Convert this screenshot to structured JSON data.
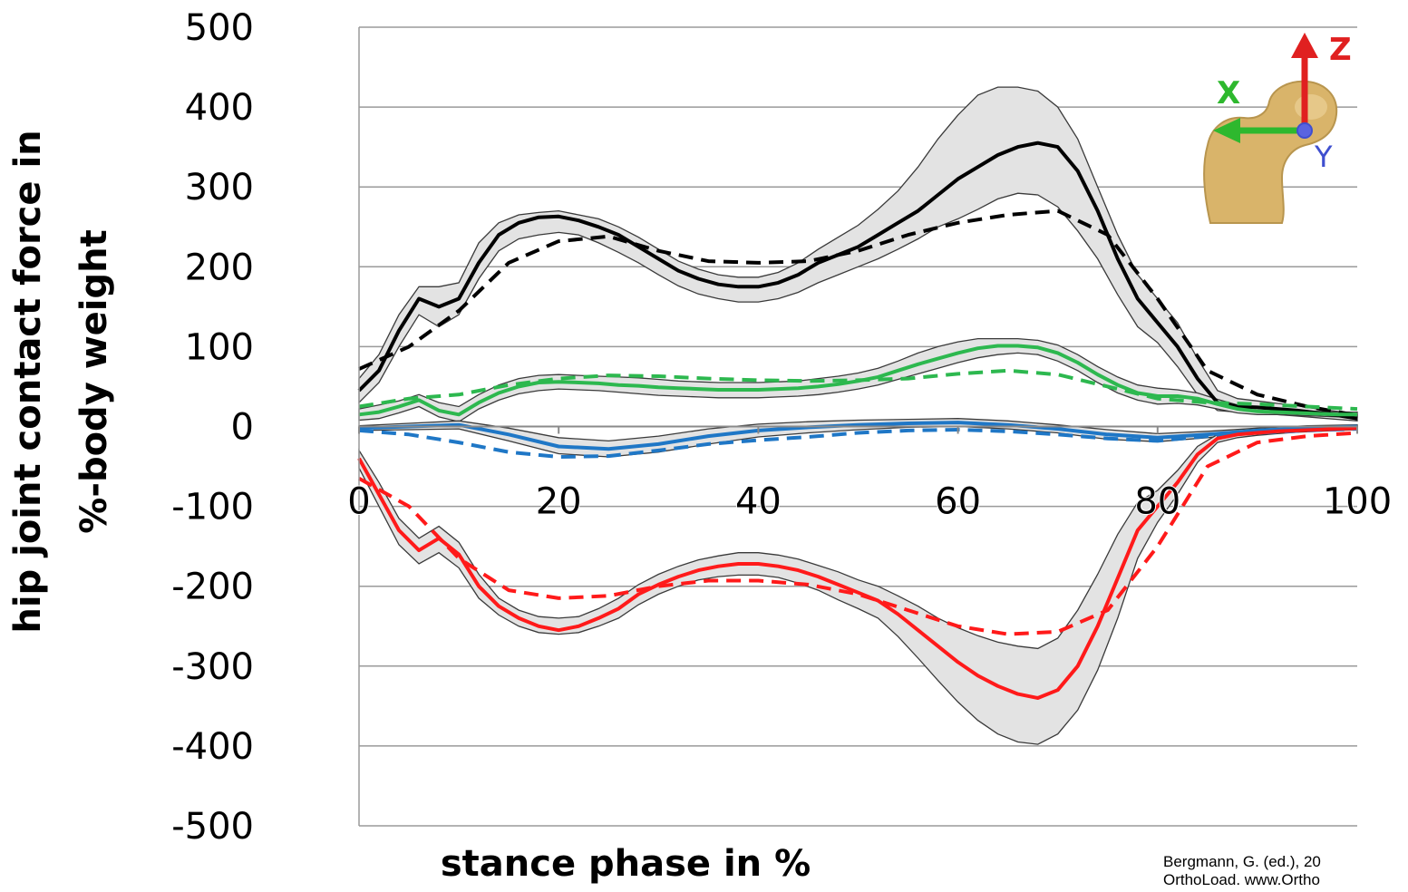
{
  "chart_data": {
    "type": "line",
    "xlabel": "stance phase in %",
    "ylabel_lines": [
      "hip joint contact force in",
      "%-body weight"
    ],
    "xlim": [
      0,
      100
    ],
    "ylim": [
      -500,
      500
    ],
    "x_ticks": [
      0,
      20,
      40,
      60,
      80,
      100
    ],
    "y_ticks": [
      500,
      400,
      300,
      200,
      100,
      0,
      -100,
      -200,
      -300,
      -400,
      -500
    ],
    "grid": "horizontal",
    "axis_triad": {
      "labels": [
        "Z",
        "X",
        "Y"
      ],
      "colors": [
        "#e02020",
        "#2eb82e",
        "#3f4fcf"
      ]
    },
    "series": [
      {
        "color": "#000000",
        "style": "solid",
        "band_color": "#e3e3e3",
        "x": [
          0,
          2,
          4,
          6,
          8,
          10,
          12,
          14,
          16,
          18,
          20,
          22,
          24,
          26,
          28,
          30,
          32,
          34,
          36,
          38,
          40,
          42,
          44,
          46,
          48,
          50,
          52,
          54,
          56,
          58,
          60,
          62,
          64,
          66,
          68,
          70,
          72,
          74,
          76,
          78,
          80,
          82,
          84,
          86,
          88,
          90,
          92,
          94,
          96,
          98,
          100
        ],
        "values": [
          45,
          70,
          120,
          160,
          150,
          160,
          205,
          240,
          255,
          262,
          263,
          258,
          250,
          240,
          225,
          210,
          195,
          185,
          178,
          175,
          175,
          180,
          190,
          205,
          215,
          225,
          240,
          255,
          270,
          290,
          310,
          325,
          340,
          350,
          355,
          350,
          320,
          270,
          210,
          160,
          130,
          100,
          60,
          30,
          25,
          24,
          22,
          20,
          17,
          14,
          10
        ],
        "band_upper": [
          60,
          90,
          140,
          175,
          175,
          180,
          230,
          255,
          265,
          268,
          270,
          265,
          260,
          250,
          237,
          222,
          207,
          197,
          190,
          187,
          187,
          193,
          205,
          222,
          237,
          252,
          272,
          295,
          325,
          360,
          390,
          415,
          425,
          425,
          420,
          400,
          360,
          300,
          240,
          190,
          160,
          130,
          85,
          45,
          35,
          32,
          29,
          26,
          22,
          19,
          15
        ],
        "band_lower": [
          30,
          55,
          100,
          140,
          125,
          140,
          185,
          220,
          235,
          240,
          243,
          240,
          230,
          218,
          205,
          190,
          176,
          166,
          160,
          156,
          156,
          160,
          168,
          180,
          190,
          200,
          210,
          222,
          235,
          250,
          260,
          272,
          285,
          292,
          290,
          275,
          245,
          210,
          165,
          125,
          105,
          75,
          40,
          20,
          18,
          16,
          15,
          13,
          11,
          9,
          7
        ]
      },
      {
        "color": "#000000",
        "style": "dashed",
        "x": [
          0,
          5,
          10,
          15,
          20,
          25,
          30,
          35,
          40,
          45,
          50,
          55,
          60,
          65,
          70,
          75,
          80,
          85,
          90,
          95,
          100
        ],
        "values": [
          72,
          100,
          145,
          205,
          232,
          238,
          220,
          207,
          205,
          207,
          220,
          240,
          255,
          265,
          270,
          240,
          160,
          70,
          40,
          25,
          14
        ]
      },
      {
        "color": "#2db84f",
        "style": "solid",
        "band_color": "#e3e3e3",
        "x": [
          0,
          2,
          4,
          6,
          8,
          10,
          12,
          14,
          16,
          18,
          20,
          22,
          24,
          26,
          28,
          30,
          32,
          34,
          36,
          38,
          40,
          42,
          44,
          46,
          48,
          50,
          52,
          54,
          56,
          58,
          60,
          62,
          64,
          66,
          68,
          70,
          72,
          74,
          76,
          78,
          80,
          82,
          84,
          86,
          88,
          90,
          92,
          94,
          96,
          98,
          100
        ],
        "values": [
          15,
          18,
          25,
          33,
          20,
          15,
          30,
          42,
          50,
          55,
          56,
          55,
          54,
          52,
          51,
          49,
          48,
          47,
          46,
          46,
          46,
          47,
          48,
          50,
          53,
          57,
          62,
          70,
          78,
          85,
          92,
          98,
          101,
          101,
          99,
          92,
          80,
          65,
          52,
          42,
          38,
          38,
          35,
          28,
          22,
          19,
          18,
          17,
          16,
          15,
          15
        ],
        "band_upper": [
          22,
          27,
          32,
          40,
          30,
          25,
          40,
          52,
          60,
          64,
          65,
          64,
          63,
          62,
          61,
          59,
          57,
          56,
          55,
          55,
          55,
          56,
          57,
          60,
          63,
          67,
          73,
          82,
          92,
          100,
          106,
          110,
          110,
          110,
          108,
          102,
          90,
          75,
          62,
          52,
          48,
          46,
          42,
          34,
          27,
          23,
          21,
          20,
          19,
          18,
          18
        ],
        "band_lower": [
          8,
          10,
          17,
          25,
          12,
          6,
          22,
          33,
          41,
          45,
          47,
          46,
          45,
          43,
          41,
          39,
          38,
          37,
          36,
          36,
          36,
          37,
          38,
          40,
          43,
          47,
          52,
          59,
          66,
          73,
          80,
          86,
          90,
          92,
          90,
          82,
          70,
          55,
          42,
          33,
          28,
          29,
          27,
          22,
          17,
          15,
          15,
          14,
          13,
          12,
          12
        ]
      },
      {
        "color": "#2db84f",
        "style": "dashed",
        "x": [
          0,
          5,
          10,
          15,
          20,
          25,
          30,
          35,
          40,
          45,
          50,
          55,
          60,
          65,
          70,
          75,
          80,
          85,
          90,
          95,
          100
        ],
        "values": [
          25,
          35,
          40,
          52,
          60,
          64,
          63,
          60,
          58,
          57,
          58,
          60,
          66,
          70,
          65,
          50,
          35,
          30,
          28,
          25,
          22
        ]
      },
      {
        "color": "#1f77c6",
        "style": "solid",
        "band_color": "#e3e3e3",
        "x": [
          0,
          5,
          10,
          15,
          20,
          25,
          30,
          35,
          40,
          45,
          50,
          55,
          60,
          65,
          70,
          75,
          80,
          85,
          90,
          95,
          100
        ],
        "values": [
          -2,
          0,
          2,
          -10,
          -25,
          -28,
          -22,
          -12,
          -5,
          -1,
          2,
          4,
          5,
          2,
          -3,
          -10,
          -14,
          -10,
          -5,
          -2,
          0
        ],
        "band_upper": [
          1,
          4,
          7,
          -2,
          -14,
          -18,
          -12,
          -3,
          3,
          6,
          8,
          9,
          10,
          7,
          2,
          -4,
          -9,
          -6,
          -2,
          1,
          2
        ],
        "band_lower": [
          -5,
          -4,
          -3,
          -18,
          -34,
          -38,
          -32,
          -22,
          -13,
          -8,
          -4,
          -1,
          0,
          -3,
          -8,
          -16,
          -19,
          -14,
          -8,
          -5,
          -2
        ]
      },
      {
        "color": "#1f77c6",
        "style": "dashed",
        "x": [
          0,
          5,
          10,
          15,
          20,
          25,
          30,
          35,
          40,
          45,
          50,
          55,
          60,
          65,
          70,
          75,
          80,
          85,
          90,
          95,
          100
        ],
        "values": [
          -5,
          -10,
          -20,
          -32,
          -38,
          -37,
          -30,
          -22,
          -17,
          -13,
          -8,
          -5,
          -4,
          -6,
          -10,
          -15,
          -18,
          -12,
          -8,
          -5,
          -3
        ]
      },
      {
        "color": "#ff1a1a",
        "style": "solid",
        "band_color": "#e3e3e3",
        "x": [
          0,
          2,
          4,
          6,
          8,
          10,
          12,
          14,
          16,
          18,
          20,
          22,
          24,
          26,
          28,
          30,
          32,
          34,
          36,
          38,
          40,
          42,
          44,
          46,
          48,
          50,
          52,
          54,
          56,
          58,
          60,
          62,
          64,
          66,
          68,
          70,
          72,
          74,
          76,
          78,
          80,
          82,
          84,
          86,
          88,
          90,
          92,
          94,
          96,
          98,
          100
        ],
        "values": [
          -40,
          -85,
          -130,
          -155,
          -140,
          -160,
          -200,
          -225,
          -240,
          -250,
          -255,
          -250,
          -240,
          -228,
          -210,
          -198,
          -188,
          -180,
          -175,
          -172,
          -172,
          -175,
          -180,
          -188,
          -198,
          -208,
          -218,
          -235,
          -255,
          -275,
          -295,
          -312,
          -325,
          -335,
          -340,
          -330,
          -300,
          -250,
          -190,
          -130,
          -100,
          -70,
          -35,
          -15,
          -10,
          -8,
          -6,
          -5,
          -4,
          -3,
          -2
        ],
        "band_upper": [
          -30,
          -70,
          -115,
          -140,
          -125,
          -145,
          -185,
          -215,
          -230,
          -238,
          -240,
          -238,
          -228,
          -215,
          -198,
          -185,
          -175,
          -167,
          -162,
          -158,
          -158,
          -161,
          -166,
          -174,
          -182,
          -192,
          -200,
          -212,
          -225,
          -240,
          -252,
          -262,
          -270,
          -275,
          -278,
          -265,
          -230,
          -185,
          -135,
          -95,
          -80,
          -55,
          -25,
          -10,
          -7,
          -5,
          -4,
          -3,
          -2,
          -2,
          -1
        ],
        "band_lower": [
          -52,
          -100,
          -148,
          -172,
          -158,
          -177,
          -215,
          -236,
          -250,
          -258,
          -260,
          -258,
          -250,
          -240,
          -223,
          -210,
          -200,
          -192,
          -188,
          -186,
          -186,
          -189,
          -196,
          -205,
          -217,
          -228,
          -240,
          -263,
          -290,
          -318,
          -345,
          -368,
          -385,
          -395,
          -398,
          -385,
          -355,
          -305,
          -240,
          -165,
          -120,
          -85,
          -45,
          -20,
          -14,
          -11,
          -9,
          -7,
          -6,
          -5,
          -4
        ]
      },
      {
        "color": "#ff1a1a",
        "style": "dashed",
        "x": [
          0,
          5,
          10,
          15,
          20,
          25,
          30,
          35,
          40,
          45,
          50,
          55,
          60,
          65,
          70,
          75,
          80,
          85,
          90,
          95,
          100
        ],
        "values": [
          -65,
          -100,
          -165,
          -205,
          -215,
          -212,
          -200,
          -193,
          -193,
          -198,
          -210,
          -230,
          -250,
          -260,
          -257,
          -230,
          -150,
          -50,
          -20,
          -12,
          -8
        ]
      }
    ]
  },
  "source_lines": [
    "Bergmann, G. (ed.), 20",
    "OrthoLoad. www.Ortho"
  ]
}
